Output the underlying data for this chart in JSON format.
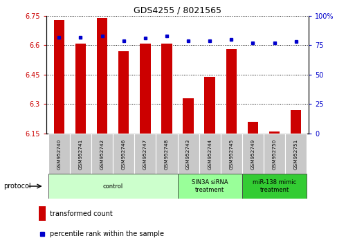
{
  "title": "GDS4255 / 8021565",
  "samples": [
    "GSM952740",
    "GSM952741",
    "GSM952742",
    "GSM952746",
    "GSM952747",
    "GSM952748",
    "GSM952743",
    "GSM952744",
    "GSM952745",
    "GSM952749",
    "GSM952750",
    "GSM952751"
  ],
  "transformed_counts": [
    6.73,
    6.61,
    6.74,
    6.57,
    6.61,
    6.61,
    6.33,
    6.44,
    6.58,
    6.21,
    6.16,
    6.27
  ],
  "percentile_ranks": [
    82,
    82,
    83,
    79,
    81,
    83,
    79,
    79,
    80,
    77,
    77,
    78
  ],
  "ylim_left": [
    6.15,
    6.75
  ],
  "ylim_right": [
    0,
    100
  ],
  "yticks_left": [
    6.15,
    6.3,
    6.45,
    6.6,
    6.75
  ],
  "yticks_right": [
    0,
    25,
    50,
    75,
    100
  ],
  "bar_color": "#cc0000",
  "dot_color": "#0000cc",
  "left_tick_color": "#cc0000",
  "right_tick_color": "#0000cc",
  "grid_color": "#000000",
  "groups": [
    {
      "label": "control",
      "start": 0,
      "end": 5,
      "color": "#ccffcc"
    },
    {
      "label": "SIN3A siRNA\ntreatment",
      "start": 6,
      "end": 8,
      "color": "#99ff99"
    },
    {
      "label": "miR-138 mimic\ntreatment",
      "start": 9,
      "end": 11,
      "color": "#33cc33"
    }
  ],
  "protocol_label": "protocol",
  "legend_bar_label": "transformed count",
  "legend_dot_label": "percentile rank within the sample",
  "background_color": "#ffffff"
}
